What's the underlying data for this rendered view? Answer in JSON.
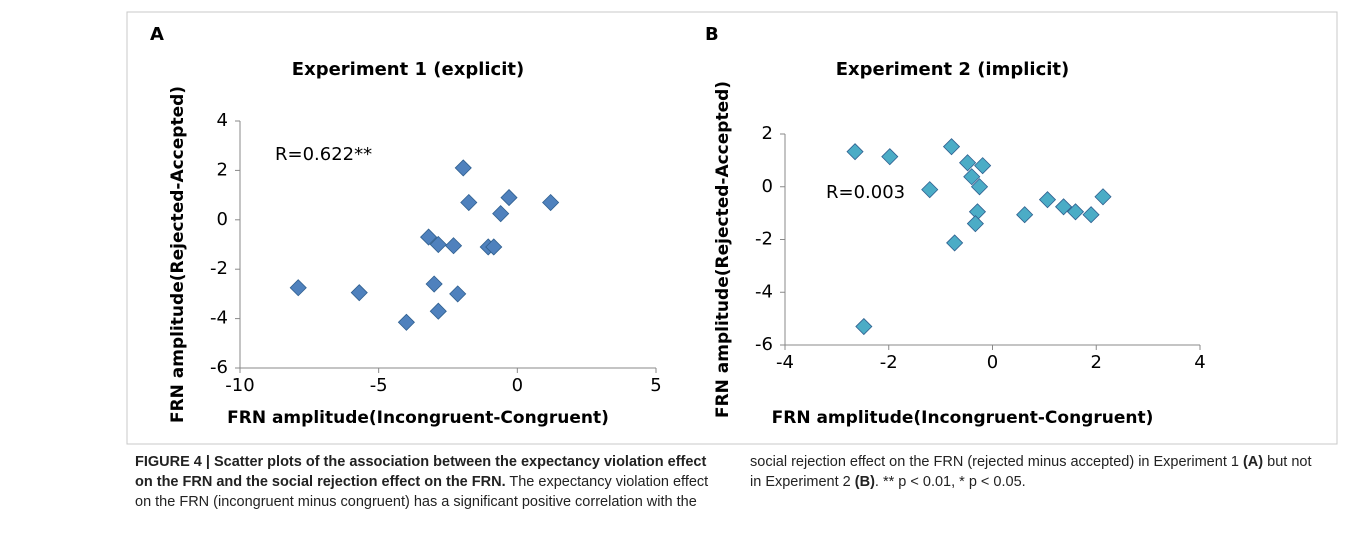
{
  "chart_data": [
    {
      "type": "scatter",
      "panel": "A",
      "title": "Experiment 1 (explicit)",
      "x_label": "FRN amplitude(Incongruent-Congruent)",
      "y_label": "FRN amplitude(Rejected-Accepted)",
      "annotation": "R=0.622**",
      "color": "#4f81bd",
      "x": [
        -7.9,
        -5.7,
        -4.0,
        -3.2,
        -3.0,
        -2.85,
        -2.85,
        -2.3,
        -2.15,
        -1.95,
        -1.75,
        -1.05,
        -0.85,
        -0.6,
        -0.3,
        1.2
      ],
      "values": [
        -2.75,
        -2.95,
        -4.15,
        -0.7,
        -2.6,
        -1.0,
        -3.7,
        -1.05,
        -3.0,
        2.1,
        0.7,
        -1.1,
        -1.1,
        0.25,
        0.9,
        0.7
      ],
      "xlim": [
        -10,
        5
      ],
      "xticks": [
        -10,
        -5,
        0,
        5
      ],
      "ylim": [
        -6,
        4
      ],
      "yticks": [
        -6,
        -4,
        -2,
        0,
        2,
        4
      ]
    },
    {
      "type": "scatter",
      "panel": "B",
      "title": "Experiment 2 (implicit)",
      "x_label": "FRN amplitude(Incongruent-Congruent)",
      "y_label": "FRN amplitude(Rejected-Accepted)",
      "annotation": "R=0.003",
      "color": "#4bacc6",
      "x": [
        -2.65,
        -1.98,
        -1.21,
        -0.79,
        -0.48,
        -0.19,
        -0.4,
        -0.25,
        -0.29,
        -0.33,
        -0.73,
        -2.48,
        0.62,
        1.06,
        1.37,
        1.6,
        1.9,
        2.13
      ],
      "values": [
        1.33,
        1.14,
        -0.11,
        1.52,
        0.91,
        0.8,
        0.38,
        0.0,
        -0.95,
        -1.4,
        -2.13,
        -5.3,
        -1.06,
        -0.49,
        -0.76,
        -0.95,
        -1.06,
        -0.38
      ],
      "xlim": [
        -4,
        4
      ],
      "xticks": [
        -4,
        -2,
        0,
        2,
        4
      ],
      "ylim": [
        -6,
        2
      ],
      "yticks": [
        -6,
        -4,
        -2,
        0,
        2
      ]
    }
  ],
  "caption": {
    "title": "FIGURE 4 | Scatter plots of the association between the expectancy violation effect on the FRN and the social rejection effect on the FRN.",
    "text_1": "The expectancy violation effect on the FRN (incongruent minus congruent) has a significant positive correlation with the social rejection effect on the FRN (rejected minus accepted) in Experiment 1",
    "panel_a": "(A)",
    "text_2": "but not in Experiment 2",
    "panel_b": "(B)",
    "text_3": ". ** p < 0.01, * p < 0.05."
  }
}
